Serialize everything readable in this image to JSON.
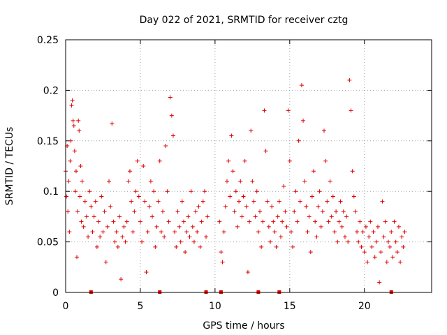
{
  "chart_data": {
    "type": "scatter",
    "title": "Day 022 of 2021, SRMTID for receiver cztg",
    "xlabel": "GPS time / hours",
    "ylabel": "SRMTID / TECUs",
    "xlim": [
      0,
      24.5
    ],
    "ylim": [
      0,
      0.25
    ],
    "x_ticks": [
      0,
      5,
      10,
      15,
      20
    ],
    "x_tick_labels": [
      "0",
      "5",
      "10",
      "15",
      "20"
    ],
    "y_ticks": [
      0,
      0.05,
      0.1,
      0.15,
      0.2,
      0.25
    ],
    "y_tick_labels": [
      "0",
      "0.05",
      "0.1",
      "0.15",
      "0.2",
      "0.25"
    ],
    "grid": true,
    "marker": "plus",
    "series": [
      {
        "color": "#e00000",
        "points": [
          [
            0.0,
            0.12
          ],
          [
            0.05,
            0.095
          ],
          [
            0.1,
            0.145
          ],
          [
            0.15,
            0.08
          ],
          [
            0.2,
            0.11
          ],
          [
            0.25,
            0.06
          ],
          [
            0.3,
            0.13
          ],
          [
            0.35,
            0.15
          ],
          [
            0.4,
            0.185
          ],
          [
            0.45,
            0.19
          ],
          [
            0.5,
            0.17
          ],
          [
            0.55,
            0.165
          ],
          [
            0.6,
            0.14
          ],
          [
            0.65,
            0.1
          ],
          [
            0.7,
            0.12
          ],
          [
            0.75,
            0.035
          ],
          [
            0.8,
            0.08
          ],
          [
            0.85,
            0.17
          ],
          [
            0.9,
            0.16
          ],
          [
            0.95,
            0.095
          ],
          [
            1.0,
            0.125
          ],
          [
            1.05,
            0.07
          ],
          [
            1.1,
            0.11
          ],
          [
            1.2,
            0.065
          ],
          [
            1.3,
            0.09
          ],
          [
            1.4,
            0.075
          ],
          [
            1.5,
            0.055
          ],
          [
            1.6,
            0.1
          ],
          [
            1.7,
            0.085
          ],
          [
            1.8,
            0.06
          ],
          [
            1.9,
            0.075
          ],
          [
            2.0,
            0.09
          ],
          [
            2.1,
            0.045
          ],
          [
            2.2,
            0.07
          ],
          [
            2.3,
            0.055
          ],
          [
            2.4,
            0.095
          ],
          [
            2.5,
            0.06
          ],
          [
            2.6,
            0.08
          ],
          [
            2.7,
            0.03
          ],
          [
            2.8,
            0.065
          ],
          [
            2.9,
            0.11
          ],
          [
            3.0,
            0.085
          ],
          [
            3.1,
            0.167
          ],
          [
            3.2,
            0.07
          ],
          [
            3.3,
            0.05
          ],
          [
            3.4,
            0.06
          ],
          [
            3.5,
            0.045
          ],
          [
            3.6,
            0.075
          ],
          [
            3.7,
            0.013
          ],
          [
            3.8,
            0.055
          ],
          [
            3.9,
            0.065
          ],
          [
            4.0,
            0.05
          ],
          [
            4.1,
            0.07
          ],
          [
            4.2,
            0.11
          ],
          [
            4.3,
            0.12
          ],
          [
            4.4,
            0.09
          ],
          [
            4.5,
            0.06
          ],
          [
            4.6,
            0.08
          ],
          [
            4.7,
            0.1
          ],
          [
            4.8,
            0.13
          ],
          [
            4.9,
            0.095
          ],
          [
            5.0,
            0.07
          ],
          [
            5.1,
            0.05
          ],
          [
            5.2,
            0.125
          ],
          [
            5.3,
            0.09
          ],
          [
            5.4,
            0.02
          ],
          [
            5.5,
            0.06
          ],
          [
            5.6,
            0.085
          ],
          [
            5.7,
            0.11
          ],
          [
            5.8,
            0.075
          ],
          [
            5.9,
            0.1
          ],
          [
            6.0,
            0.045
          ],
          [
            6.1,
            0.065
          ],
          [
            6.2,
            0.09
          ],
          [
            6.3,
            0.13
          ],
          [
            6.4,
            0.06
          ],
          [
            6.5,
            0.08
          ],
          [
            6.6,
            0.055
          ],
          [
            6.7,
            0.145
          ],
          [
            6.8,
            0.1
          ],
          [
            6.9,
            0.07
          ],
          [
            7.0,
            0.193
          ],
          [
            7.1,
            0.175
          ],
          [
            7.2,
            0.155
          ],
          [
            7.3,
            0.06
          ],
          [
            7.4,
            0.045
          ],
          [
            7.5,
            0.08
          ],
          [
            7.6,
            0.065
          ],
          [
            7.7,
            0.05
          ],
          [
            7.8,
            0.09
          ],
          [
            7.9,
            0.07
          ],
          [
            8.0,
            0.04
          ],
          [
            8.1,
            0.06
          ],
          [
            8.2,
            0.075
          ],
          [
            8.3,
            0.055
          ],
          [
            8.4,
            0.1
          ],
          [
            8.5,
            0.065
          ],
          [
            8.6,
            0.05
          ],
          [
            8.7,
            0.08
          ],
          [
            8.8,
            0.06
          ],
          [
            8.9,
            0.085
          ],
          [
            9.0,
            0.045
          ],
          [
            9.1,
            0.07
          ],
          [
            9.2,
            0.09
          ],
          [
            9.3,
            0.1
          ],
          [
            9.4,
            0.055
          ],
          [
            9.5,
            0.075
          ],
          [
            10.3,
            0.07
          ],
          [
            10.4,
            0.04
          ],
          [
            10.5,
            0.03
          ],
          [
            10.6,
            0.06
          ],
          [
            10.7,
            0.085
          ],
          [
            10.8,
            0.11
          ],
          [
            10.9,
            0.13
          ],
          [
            11.0,
            0.095
          ],
          [
            11.1,
            0.155
          ],
          [
            11.2,
            0.12
          ],
          [
            11.3,
            0.08
          ],
          [
            11.4,
            0.1
          ],
          [
            11.5,
            0.065
          ],
          [
            11.6,
            0.09
          ],
          [
            11.7,
            0.11
          ],
          [
            11.8,
            0.075
          ],
          [
            11.9,
            0.095
          ],
          [
            12.0,
            0.13
          ],
          [
            12.1,
            0.085
          ],
          [
            12.2,
            0.02
          ],
          [
            12.3,
            0.07
          ],
          [
            12.4,
            0.16
          ],
          [
            12.5,
            0.11
          ],
          [
            12.6,
            0.09
          ],
          [
            12.7,
            0.075
          ],
          [
            12.8,
            0.1
          ],
          [
            12.9,
            0.06
          ],
          [
            13.0,
            0.08
          ],
          [
            13.1,
            0.045
          ],
          [
            13.2,
            0.07
          ],
          [
            13.3,
            0.18
          ],
          [
            13.4,
            0.14
          ],
          [
            13.5,
            0.09
          ],
          [
            13.6,
            0.065
          ],
          [
            13.7,
            0.05
          ],
          [
            13.8,
            0.085
          ],
          [
            13.9,
            0.07
          ],
          [
            14.0,
            0.06
          ],
          [
            14.1,
            0.045
          ],
          [
            14.2,
            0.075
          ],
          [
            14.3,
            0.09
          ],
          [
            14.4,
            0.055
          ],
          [
            14.5,
            0.07
          ],
          [
            14.6,
            0.105
          ],
          [
            14.7,
            0.08
          ],
          [
            14.8,
            0.065
          ],
          [
            14.9,
            0.18
          ],
          [
            15.0,
            0.13
          ],
          [
            15.1,
            0.06
          ],
          [
            15.2,
            0.045
          ],
          [
            15.3,
            0.08
          ],
          [
            15.4,
            0.1
          ],
          [
            15.5,
            0.07
          ],
          [
            15.6,
            0.15
          ],
          [
            15.7,
            0.09
          ],
          [
            15.8,
            0.205
          ],
          [
            15.9,
            0.17
          ],
          [
            16.0,
            0.11
          ],
          [
            16.1,
            0.085
          ],
          [
            16.2,
            0.06
          ],
          [
            16.3,
            0.075
          ],
          [
            16.4,
            0.04
          ],
          [
            16.5,
            0.095
          ],
          [
            16.6,
            0.12
          ],
          [
            16.7,
            0.07
          ],
          [
            16.8,
            0.055
          ],
          [
            16.9,
            0.085
          ],
          [
            17.0,
            0.1
          ],
          [
            17.1,
            0.065
          ],
          [
            17.2,
            0.08
          ],
          [
            17.3,
            0.16
          ],
          [
            17.4,
            0.13
          ],
          [
            17.5,
            0.09
          ],
          [
            17.6,
            0.07
          ],
          [
            17.7,
            0.11
          ],
          [
            17.8,
            0.075
          ],
          [
            17.9,
            0.095
          ],
          [
            18.0,
            0.06
          ],
          [
            18.1,
            0.08
          ],
          [
            18.2,
            0.05
          ],
          [
            18.3,
            0.07
          ],
          [
            18.4,
            0.09
          ],
          [
            18.5,
            0.065
          ],
          [
            18.6,
            0.08
          ],
          [
            18.7,
            0.055
          ],
          [
            18.8,
            0.075
          ],
          [
            18.9,
            0.05
          ],
          [
            19.0,
            0.21
          ],
          [
            19.1,
            0.18
          ],
          [
            19.2,
            0.12
          ],
          [
            19.3,
            0.095
          ],
          [
            19.4,
            0.08
          ],
          [
            19.5,
            0.06
          ],
          [
            19.6,
            0.05
          ],
          [
            19.7,
            0.07
          ],
          [
            19.8,
            0.045
          ],
          [
            19.9,
            0.06
          ],
          [
            20.0,
            0.04
          ],
          [
            20.1,
            0.065
          ],
          [
            20.2,
            0.03
          ],
          [
            20.3,
            0.055
          ],
          [
            20.4,
            0.07
          ],
          [
            20.5,
            0.045
          ],
          [
            20.6,
            0.06
          ],
          [
            20.7,
            0.035
          ],
          [
            20.8,
            0.05
          ],
          [
            20.9,
            0.065
          ],
          [
            21.0,
            0.01
          ],
          [
            21.1,
            0.04
          ],
          [
            21.2,
            0.09
          ],
          [
            21.3,
            0.055
          ],
          [
            21.4,
            0.07
          ],
          [
            21.5,
            0.03
          ],
          [
            21.6,
            0.05
          ],
          [
            21.7,
            0.045
          ],
          [
            21.8,
            0.06
          ],
          [
            21.9,
            0.035
          ],
          [
            22.0,
            0.07
          ],
          [
            22.1,
            0.05
          ],
          [
            22.2,
            0.04
          ],
          [
            22.3,
            0.065
          ],
          [
            22.4,
            0.03
          ],
          [
            22.5,
            0.055
          ],
          [
            22.6,
            0.045
          ],
          [
            22.7,
            0.06
          ]
        ]
      }
    ],
    "gap_markers_x": [
      1.7,
      6.3,
      9.4,
      10.4,
      12.9,
      14.3,
      21.8
    ]
  }
}
